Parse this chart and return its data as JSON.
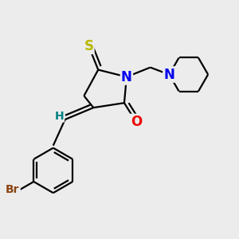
{
  "bg_color": "#ececec",
  "bond_color": "#000000",
  "S_color": "#b8b800",
  "N_color": "#0000ee",
  "O_color": "#ee0000",
  "Br_color": "#8b4513",
  "H_color": "#008080",
  "bond_width": 1.6,
  "figsize": [
    3.0,
    3.0
  ],
  "dpi": 100,
  "xlim": [
    0,
    10
  ],
  "ylim": [
    0,
    10
  ]
}
